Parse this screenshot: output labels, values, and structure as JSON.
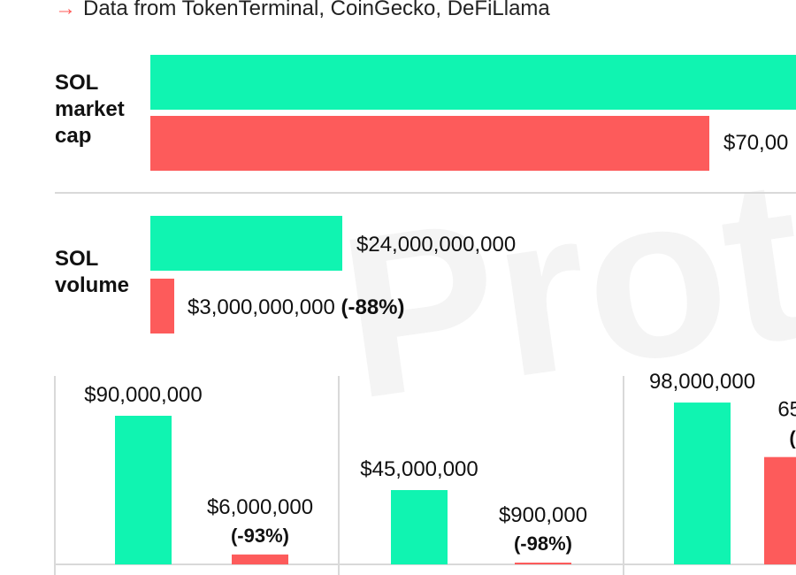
{
  "source": {
    "arrow": "→",
    "text": "Data from TokenTerminal, CoinGecko, DeFiLlama"
  },
  "watermark": "Proto",
  "colors": {
    "before": "#10f4b1",
    "after": "#fd5b5b",
    "axis": "#d9d9d9"
  },
  "chart_data": [
    {
      "type": "bar",
      "orientation": "horizontal",
      "category": "SOL\nmarket\ncap",
      "series": [
        {
          "values": [
            145000000000
          ],
          "label": ""
        },
        {
          "values": [
            70000000000
          ],
          "label": "$70,00"
        }
      ]
    },
    {
      "type": "bar",
      "orientation": "horizontal",
      "category": "SOL\nvolume",
      "series": [
        {
          "values": [
            24000000000
          ],
          "label": "$24,000,000,000"
        },
        {
          "values": [
            3000000000
          ],
          "label": "$3,000,000,000",
          "change": "(-88%)"
        }
      ]
    },
    {
      "type": "bar",
      "orientation": "vertical",
      "groups": [
        {
          "values": [
            90000000,
            6000000
          ],
          "labels": [
            "$90,000,000",
            "$6,000,000"
          ],
          "changes": [
            "",
            "(-93%)"
          ]
        },
        {
          "values": [
            45000000,
            900000
          ],
          "labels": [
            "$45,000,000",
            "$900,000"
          ],
          "changes": [
            "",
            "(-98%)"
          ]
        },
        {
          "values": [
            98000000,
            65000000
          ],
          "labels": [
            "98,000,000",
            "65,"
          ],
          "changes": [
            "",
            "("
          ]
        }
      ]
    }
  ]
}
